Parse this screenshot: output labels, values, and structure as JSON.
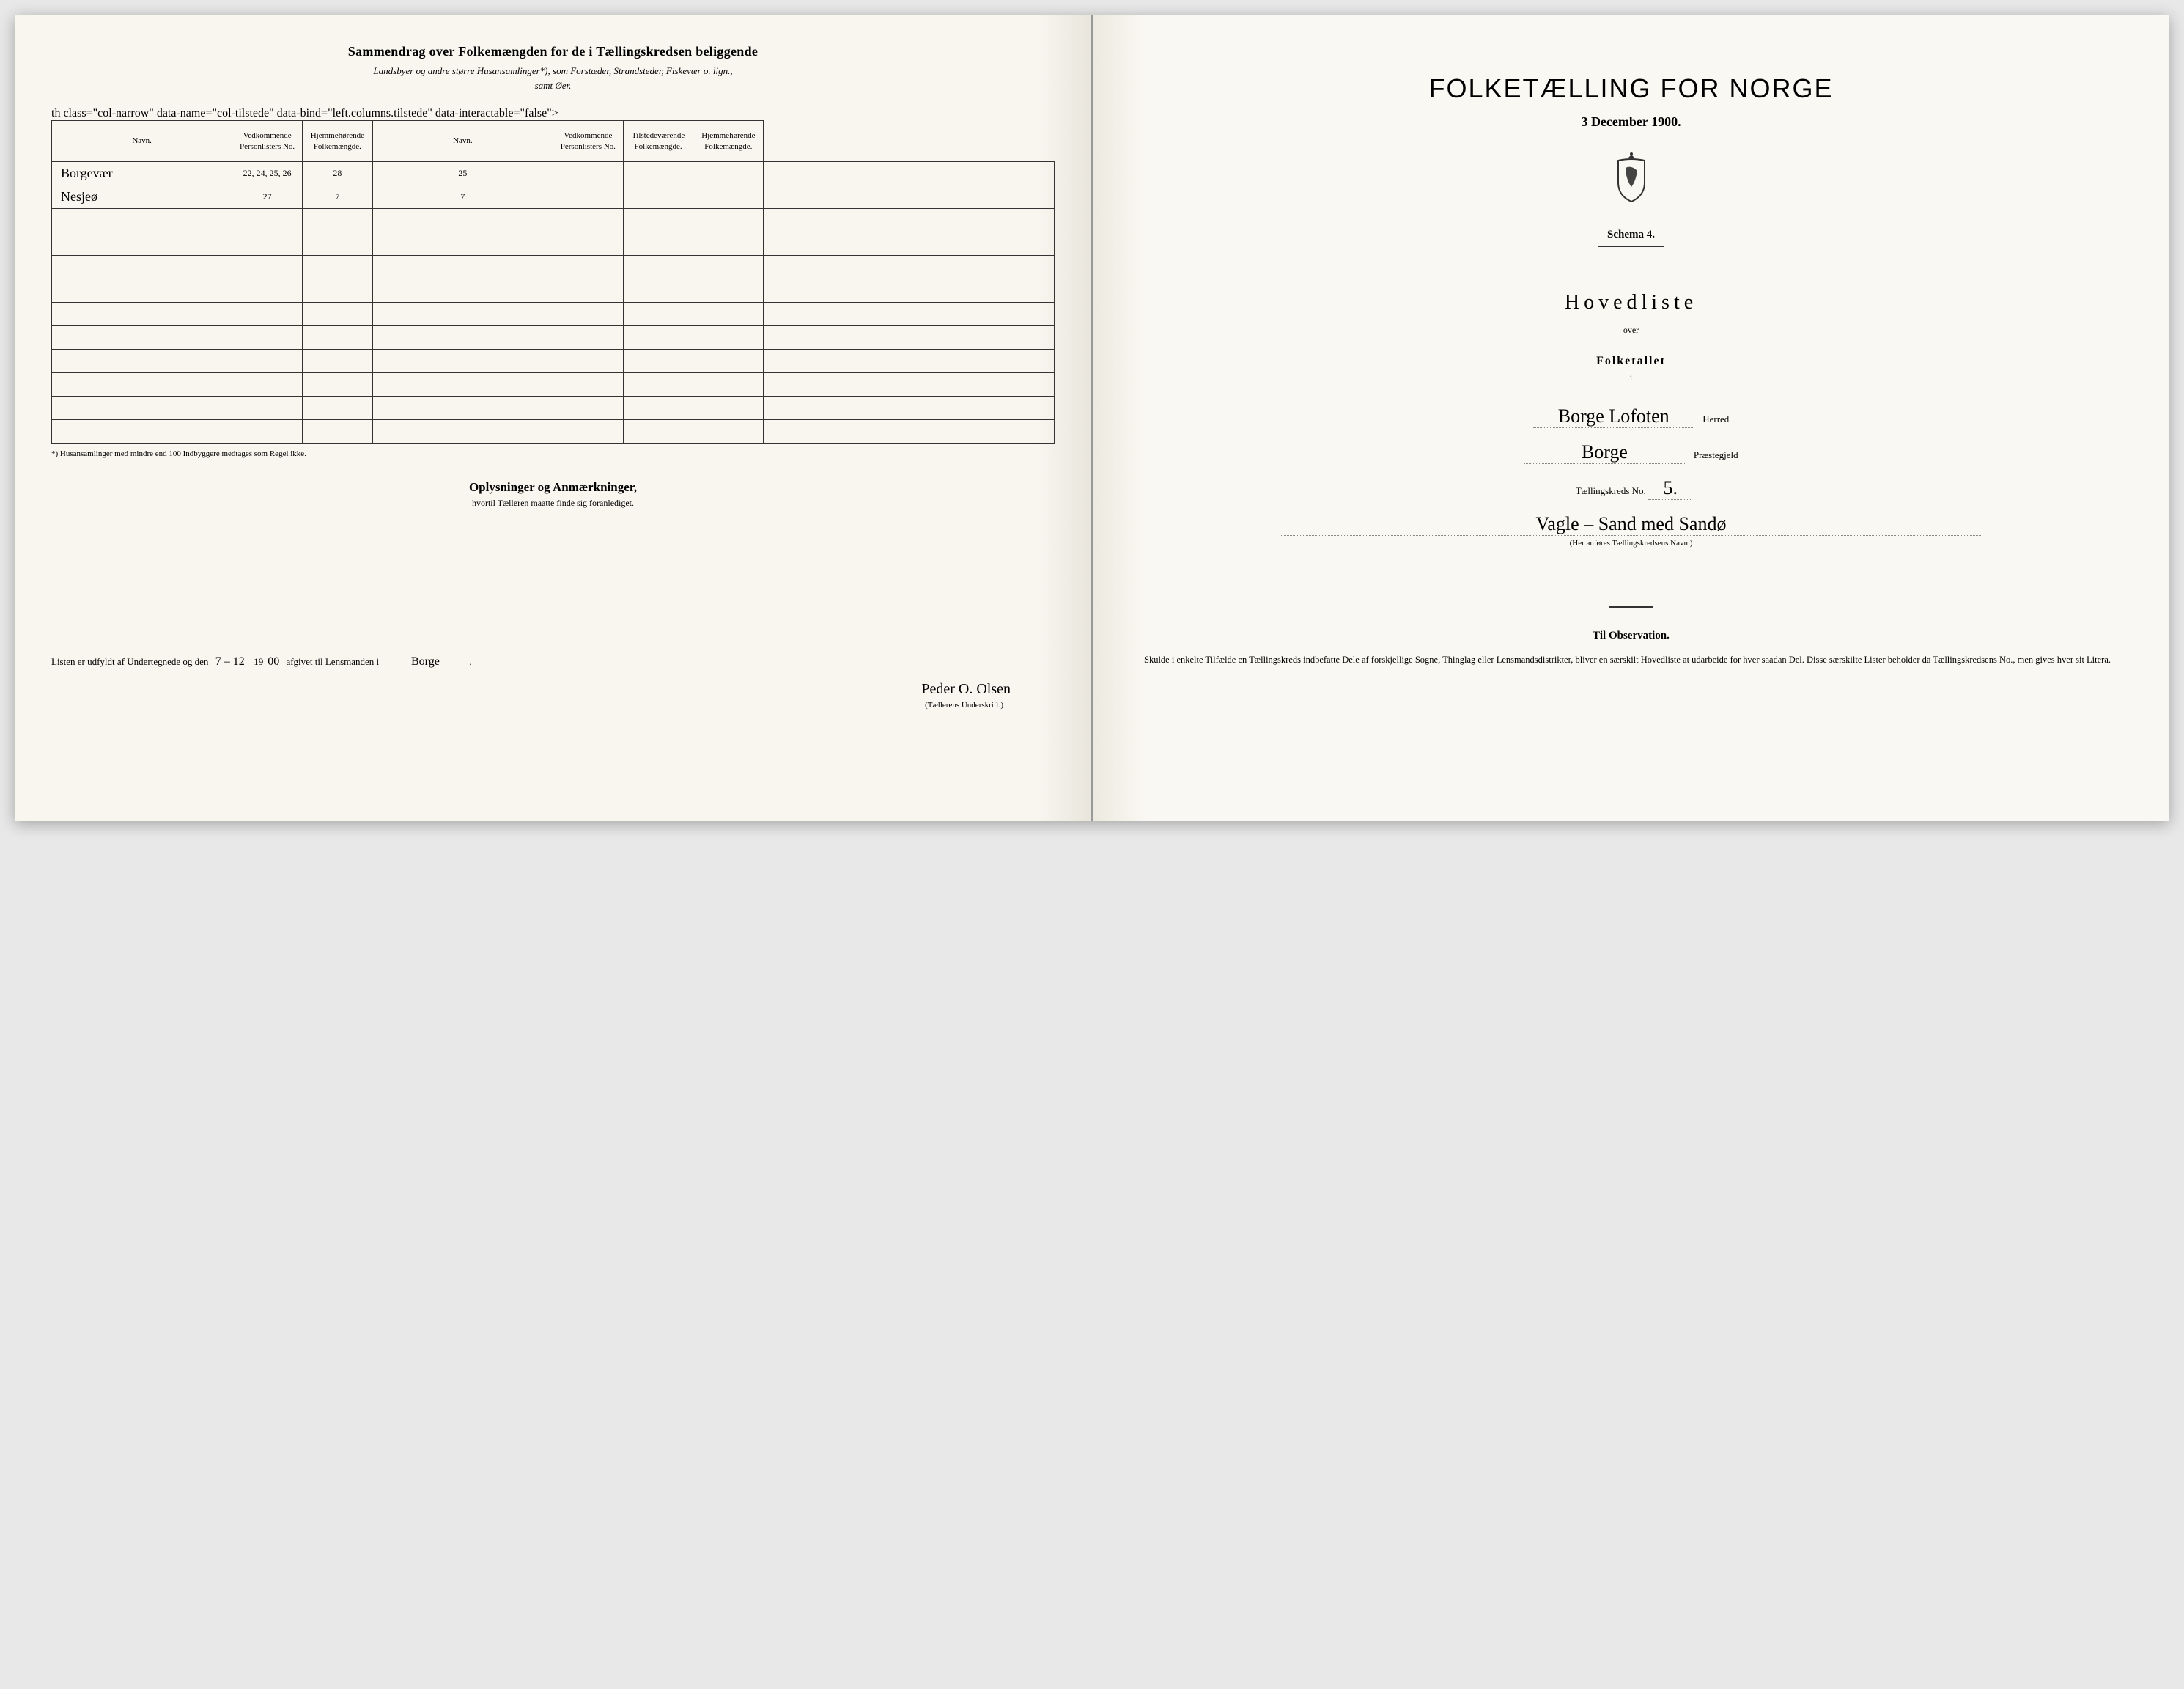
{
  "left": {
    "header": "Sammendrag over Folkemængden for de i Tællingskredsen beliggende",
    "subhead_line1": "Landsbyer og andre større Husansamlinger*), som Forstæder, Strandsteder, Fiskevær o. lign.,",
    "subhead_line2": "samt Øer.",
    "columns": {
      "navn": "Navn.",
      "vedkommende": "Ved­kommende Personlisters No.",
      "tilstede": "Tilstede­værende Folke­mængde.",
      "hjemme": "Hjemme­hørende Folke­mængde.",
      "navn2": "Navn.",
      "vedkommende2": "Ved­kommende Personlisters No.",
      "tilstede2": "Tilstede­værende Folke­mængde.",
      "hjemme2": "Hjemme­hørende Folke­mængde."
    },
    "rows": [
      {
        "navn": "Borgevær",
        "ved": "22, 24, 25, 26",
        "til": "28",
        "hjem": "25",
        "navn2": "",
        "ved2": "",
        "til2": "",
        "hjem2": ""
      },
      {
        "navn": "Nesjeø",
        "ved": "27",
        "til": "7",
        "hjem": "7",
        "navn2": "",
        "ved2": "",
        "til2": "",
        "hjem2": ""
      },
      {
        "navn": "",
        "ved": "",
        "til": "",
        "hjem": "",
        "navn2": "",
        "ved2": "",
        "til2": "",
        "hjem2": ""
      },
      {
        "navn": "",
        "ved": "",
        "til": "",
        "hjem": "",
        "navn2": "",
        "ved2": "",
        "til2": "",
        "hjem2": ""
      },
      {
        "navn": "",
        "ved": "",
        "til": "",
        "hjem": "",
        "navn2": "",
        "ved2": "",
        "til2": "",
        "hjem2": ""
      },
      {
        "navn": "",
        "ved": "",
        "til": "",
        "hjem": "",
        "navn2": "",
        "ved2": "",
        "til2": "",
        "hjem2": ""
      },
      {
        "navn": "",
        "ved": "",
        "til": "",
        "hjem": "",
        "navn2": "",
        "ved2": "",
        "til2": "",
        "hjem2": ""
      },
      {
        "navn": "",
        "ved": "",
        "til": "",
        "hjem": "",
        "navn2": "",
        "ved2": "",
        "til2": "",
        "hjem2": ""
      },
      {
        "navn": "",
        "ved": "",
        "til": "",
        "hjem": "",
        "navn2": "",
        "ved2": "",
        "til2": "",
        "hjem2": ""
      },
      {
        "navn": "",
        "ved": "",
        "til": "",
        "hjem": "",
        "navn2": "",
        "ved2": "",
        "til2": "",
        "hjem2": ""
      },
      {
        "navn": "",
        "ved": "",
        "til": "",
        "hjem": "",
        "navn2": "",
        "ved2": "",
        "til2": "",
        "hjem2": ""
      },
      {
        "navn": "",
        "ved": "",
        "til": "",
        "hjem": "",
        "navn2": "",
        "ved2": "",
        "til2": "",
        "hjem2": ""
      }
    ],
    "footnote": "*) Husansamlinger med mindre end 100 Indbyggere medtages som Regel ikke.",
    "remarks_header": "Oplysninger og Anmærkninger,",
    "remarks_sub": "hvortil Tælleren maatte finde sig foranlediget.",
    "bottom_prefix": "Listen er udfyldt af Undertegnede og den",
    "bottom_date": "7 – 12",
    "bottom_year_prefix": "19",
    "bottom_year_suffix": "00",
    "bottom_mid": "afgivet til Lensmanden i",
    "bottom_place": "Borge",
    "signature": "Peder O. Olsen",
    "signature_caption": "(Tællerens Underskrift.)"
  },
  "right": {
    "title": "FOLKETÆLLING FOR NORGE",
    "date": "3 December 1900.",
    "schema": "Schema 4.",
    "hoved": "Hovedliste",
    "over": "over",
    "folketallet": "Folketallet",
    "i": "i",
    "herred_value": "Borge Lofoten",
    "herred_label": "Herred",
    "praeste_value": "Borge",
    "praeste_label": "Præstegjeld",
    "kreds_no_label": "Tællingskreds No.",
    "kreds_no_value": "5.",
    "kreds_name": "Vagle – Sand med Sandø",
    "kreds_caption": "(Her anføres Tællingskredsens Navn.)",
    "obs_title": "Til Observation.",
    "obs_body": "Skulde i enkelte Tilfælde en Tællingskreds indbefatte Dele af forskjellige Sogne, Thinglag eller Lensmandsdistrikter, bliver en særskilt Hovedliste at udarbeide for hver saadan Del. Disse særskilte Lister beholder da Tællingskredsens No., men gives hver sit Litera."
  },
  "style": {
    "paper_bg": "#faf8f2",
    "ink": "#2a2a2a",
    "rule": "#333333",
    "script_color": "#3a3a3a"
  }
}
